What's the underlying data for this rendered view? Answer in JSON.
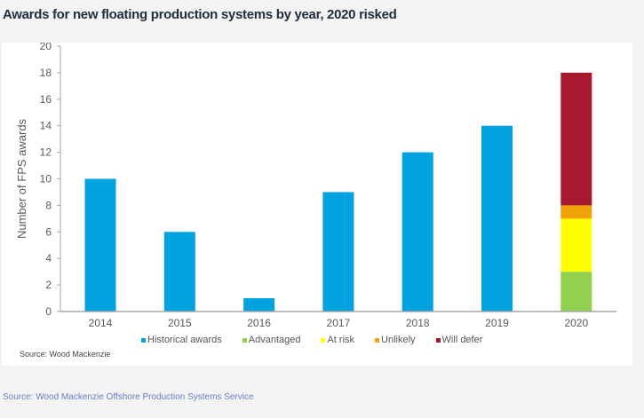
{
  "chart_data": {
    "type": "bar",
    "stacked": true,
    "title": "Awards for new floating production systems by year, 2020 risked",
    "ylabel": "Number of FPS awards",
    "xlabel": "",
    "ylim": [
      0,
      20
    ],
    "yticks": [
      0,
      2,
      4,
      6,
      8,
      10,
      12,
      14,
      16,
      18,
      20
    ],
    "grid": false,
    "legend_position": "bottom",
    "categories": [
      "2014",
      "2015",
      "2016",
      "2017",
      "2018",
      "2019",
      "2020"
    ],
    "series": [
      {
        "name": "Historical awards",
        "color": "#00a3e0",
        "values": [
          10,
          6,
          1,
          9,
          12,
          14,
          0
        ]
      },
      {
        "name": "Advantaged",
        "color": "#92d050",
        "values": [
          0,
          0,
          0,
          0,
          0,
          0,
          3
        ]
      },
      {
        "name": "At risk",
        "color": "#ffff00",
        "values": [
          0,
          0,
          0,
          0,
          0,
          0,
          4
        ]
      },
      {
        "name": "Unlikely",
        "color": "#f0a30a",
        "values": [
          0,
          0,
          0,
          0,
          0,
          0,
          1
        ]
      },
      {
        "name": "Will defer",
        "color": "#a6192e",
        "values": [
          0,
          0,
          0,
          0,
          0,
          0,
          10
        ]
      }
    ],
    "source": "Source: Wood Mackenzie"
  },
  "footer_source": "Source: Wood Mackenzie Offshore Production Systems Service"
}
